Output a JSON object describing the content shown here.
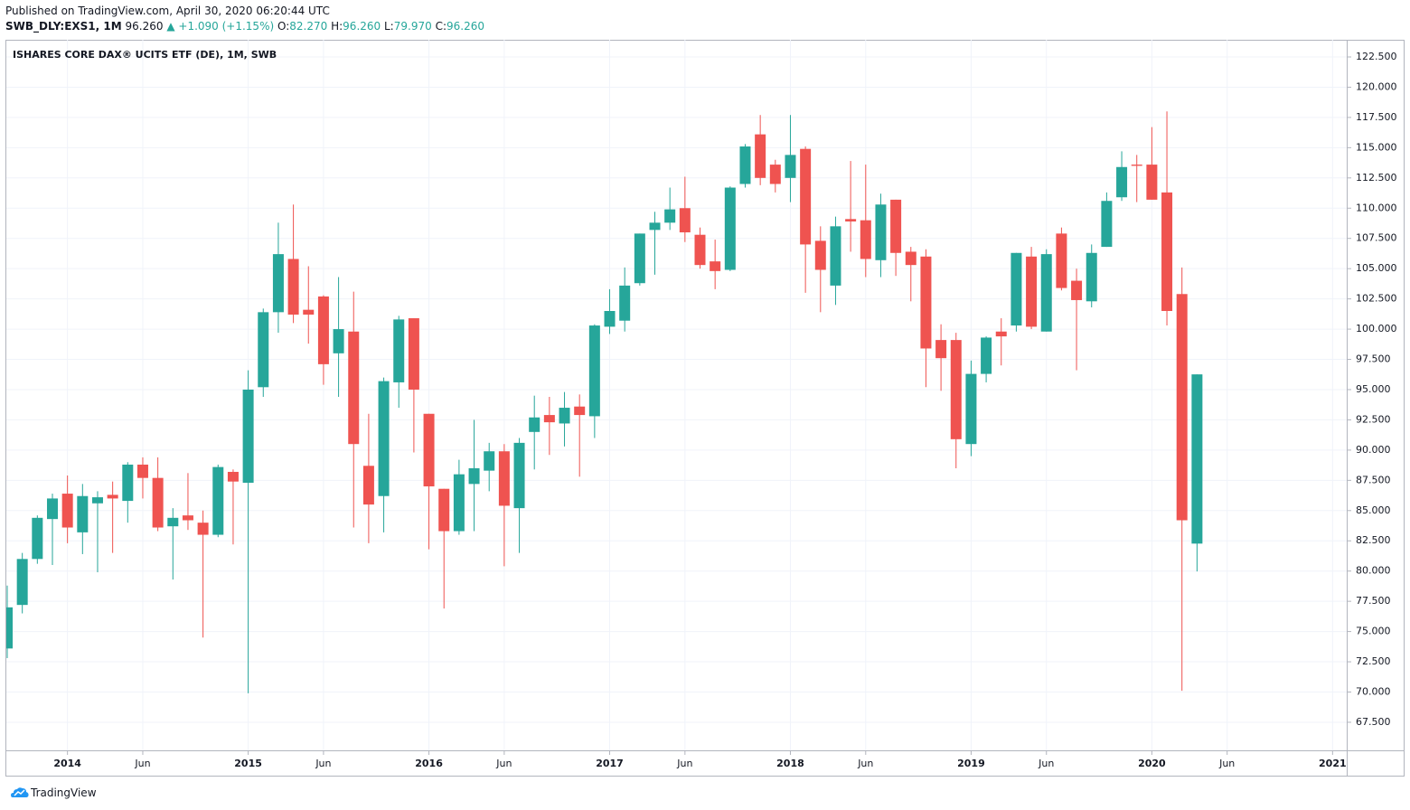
{
  "header": {
    "published": "Published on TradingView.com, April 30, 2020 06:20:44 UTC",
    "symbol": "SWB_DLY:EXS1, 1M",
    "last": "96.260",
    "change": "▲ +1.090 (+1.15%)",
    "ohlc": [
      {
        "label": "O:",
        "value": "82.270"
      },
      {
        "label": "H:",
        "value": "96.260"
      },
      {
        "label": "L:",
        "value": "79.970"
      },
      {
        "label": "C:",
        "value": "96.260"
      }
    ]
  },
  "footer": {
    "brand": "TradingView"
  },
  "chart_data": {
    "type": "candlestick",
    "title": "ISHARES CORE DAX® UCITS ETF (DE), 1M, SWB",
    "up_color": "#26a69a",
    "down_color": "#ef5350",
    "grid": true,
    "x": [
      "2013-09",
      "2013-10",
      "2013-11",
      "2013-12",
      "2014-01",
      "2014-02",
      "2014-03",
      "2014-04",
      "2014-05",
      "2014-06",
      "2014-07",
      "2014-08",
      "2014-09",
      "2014-10",
      "2014-11",
      "2014-12",
      "2015-01",
      "2015-02",
      "2015-03",
      "2015-04",
      "2015-05",
      "2015-06",
      "2015-07",
      "2015-08",
      "2015-09",
      "2015-10",
      "2015-11",
      "2015-12",
      "2016-01",
      "2016-02",
      "2016-03",
      "2016-04",
      "2016-05",
      "2016-06",
      "2016-07",
      "2016-08",
      "2016-09",
      "2016-10",
      "2016-11",
      "2016-12",
      "2017-01",
      "2017-02",
      "2017-03",
      "2017-04",
      "2017-05",
      "2017-06",
      "2017-07",
      "2017-08",
      "2017-09",
      "2017-10",
      "2017-11",
      "2017-12",
      "2018-01",
      "2018-02",
      "2018-03",
      "2018-04",
      "2018-05",
      "2018-06",
      "2018-07",
      "2018-08",
      "2018-09",
      "2018-10",
      "2018-11",
      "2018-12",
      "2019-01",
      "2019-02",
      "2019-03",
      "2019-04",
      "2019-05",
      "2019-06",
      "2019-07",
      "2019-08",
      "2019-09",
      "2019-10",
      "2019-11",
      "2019-12",
      "2020-01",
      "2020-02",
      "2020-03",
      "2020-04"
    ],
    "open": [
      73.6,
      77.2,
      81.0,
      84.3,
      86.4,
      83.2,
      85.6,
      86.3,
      85.8,
      88.8,
      87.7,
      83.7,
      84.6,
      84.0,
      83.0,
      88.2,
      87.3,
      95.2,
      101.4,
      105.8,
      101.6,
      102.7,
      98.0,
      99.8,
      88.7,
      86.2,
      95.6,
      100.9,
      93.0,
      86.8,
      83.3,
      87.2,
      88.3,
      89.9,
      85.2,
      91.5,
      92.9,
      92.2,
      93.6,
      92.8,
      100.2,
      100.7,
      103.8,
      108.2,
      108.8,
      110.0,
      107.8,
      105.6,
      104.9,
      112.0,
      116.1,
      113.6,
      112.5,
      114.9,
      107.3,
      103.6,
      109.1,
      109.0,
      105.7,
      110.7,
      106.4,
      106.0,
      99.1,
      99.1,
      90.5,
      96.3,
      99.8,
      100.3,
      106.0,
      99.8,
      107.9,
      104.0,
      102.3,
      106.8,
      110.9,
      113.6,
      113.6,
      111.3,
      102.9,
      82.27
    ],
    "high": [
      78.8,
      81.5,
      84.6,
      86.4,
      87.9,
      87.2,
      86.6,
      87.4,
      89.0,
      89.4,
      89.4,
      85.2,
      88.1,
      85.0,
      88.8,
      88.4,
      96.6,
      101.7,
      108.8,
      110.3,
      105.2,
      102.8,
      104.3,
      103.1,
      93.0,
      96.0,
      101.1,
      100.9,
      93.0,
      86.8,
      89.2,
      92.5,
      90.6,
      90.5,
      91.0,
      94.5,
      94.4,
      94.8,
      94.6,
      100.4,
      103.3,
      105.1,
      107.9,
      109.7,
      111.7,
      112.6,
      108.4,
      107.4,
      111.8,
      115.3,
      117.7,
      114.0,
      117.7,
      115.1,
      108.5,
      109.3,
      113.9,
      113.6,
      111.2,
      110.7,
      106.8,
      106.6,
      100.4,
      99.7,
      97.4,
      99.4,
      100.9,
      106.3,
      106.8,
      106.6,
      108.4,
      105.0,
      107.0,
      111.3,
      114.7,
      114.4,
      116.7,
      118.0,
      105.1,
      96.26
    ],
    "low": [
      72.8,
      76.5,
      80.6,
      80.5,
      82.3,
      81.4,
      79.9,
      81.5,
      84.0,
      86.0,
      83.3,
      79.3,
      83.4,
      74.5,
      82.8,
      82.2,
      69.9,
      94.4,
      99.7,
      100.5,
      98.8,
      95.4,
      94.4,
      83.6,
      82.3,
      83.2,
      93.5,
      89.8,
      81.8,
      76.9,
      83.0,
      83.3,
      86.6,
      80.4,
      81.5,
      88.4,
      89.6,
      90.3,
      87.8,
      91.0,
      99.6,
      99.8,
      103.6,
      104.5,
      108.2,
      107.2,
      105.0,
      103.3,
      104.8,
      111.7,
      111.9,
      111.3,
      110.5,
      103.0,
      101.4,
      102.0,
      106.4,
      104.3,
      104.3,
      104.4,
      102.3,
      95.2,
      94.9,
      88.5,
      89.5,
      95.6,
      97.0,
      99.8,
      100.0,
      99.8,
      103.2,
      96.6,
      101.8,
      106.8,
      110.6,
      110.5,
      110.7,
      100.3,
      70.1,
      79.97
    ],
    "close": [
      77.0,
      81.0,
      84.4,
      86.0,
      83.6,
      86.2,
      86.1,
      86.0,
      88.8,
      87.7,
      83.6,
      84.4,
      84.2,
      83.0,
      88.6,
      87.4,
      95.0,
      101.4,
      106.2,
      101.2,
      101.2,
      97.1,
      100.0,
      90.5,
      85.5,
      95.7,
      100.8,
      95.0,
      87.0,
      83.3,
      88.0,
      88.5,
      89.9,
      85.4,
      90.6,
      92.7,
      92.3,
      93.5,
      92.9,
      100.3,
      101.5,
      103.6,
      107.9,
      108.8,
      109.9,
      108.0,
      105.3,
      104.8,
      111.7,
      115.1,
      112.5,
      112.0,
      114.4,
      107.0,
      104.9,
      108.5,
      108.9,
      105.8,
      110.3,
      106.3,
      105.3,
      98.4,
      97.6,
      90.9,
      96.3,
      99.3,
      99.4,
      106.3,
      100.2,
      106.2,
      103.4,
      102.4,
      106.3,
      110.6,
      113.4,
      113.5,
      110.7,
      101.5,
      84.2,
      96.26
    ],
    "xlim": [
      "2013-09",
      "2021-02"
    ],
    "xticks": [
      {
        "value": "2014-01",
        "label": "2014"
      },
      {
        "value": "2014-06",
        "label": "Jun"
      },
      {
        "value": "2015-01",
        "label": "2015"
      },
      {
        "value": "2015-06",
        "label": "Jun"
      },
      {
        "value": "2016-01",
        "label": "2016"
      },
      {
        "value": "2016-06",
        "label": "Jun"
      },
      {
        "value": "2017-01",
        "label": "2017"
      },
      {
        "value": "2017-06",
        "label": "Jun"
      },
      {
        "value": "2018-01",
        "label": "2018"
      },
      {
        "value": "2018-06",
        "label": "Jun"
      },
      {
        "value": "2019-01",
        "label": "2019"
      },
      {
        "value": "2019-06",
        "label": "Jun"
      },
      {
        "value": "2020-01",
        "label": "2020"
      },
      {
        "value": "2020-06",
        "label": "Jun"
      },
      {
        "value": "2021-01",
        "label": "2021"
      }
    ],
    "ylim": [
      65.18,
      123.92
    ],
    "yticks": [
      {
        "value": 67.5,
        "label": "67.500"
      },
      {
        "value": 70,
        "label": "70.000"
      },
      {
        "value": 72.5,
        "label": "72.500"
      },
      {
        "value": 75,
        "label": "75.000"
      },
      {
        "value": 77.5,
        "label": "77.500"
      },
      {
        "value": 80,
        "label": "80.000"
      },
      {
        "value": 82.5,
        "label": "82.500"
      },
      {
        "value": 85,
        "label": "85.000"
      },
      {
        "value": 87.5,
        "label": "87.500"
      },
      {
        "value": 90,
        "label": "90.000"
      },
      {
        "value": 92.5,
        "label": "92.500"
      },
      {
        "value": 95,
        "label": "95.000"
      },
      {
        "value": 97.5,
        "label": "97.500"
      },
      {
        "value": 100,
        "label": "100.000"
      },
      {
        "value": 102.5,
        "label": "102.500"
      },
      {
        "value": 105,
        "label": "105.000"
      },
      {
        "value": 107.5,
        "label": "107.500"
      },
      {
        "value": 110,
        "label": "110.000"
      },
      {
        "value": 112.5,
        "label": "112.500"
      },
      {
        "value": 115,
        "label": "115.000"
      },
      {
        "value": 117.5,
        "label": "117.500"
      },
      {
        "value": 120,
        "label": "120.000"
      },
      {
        "value": 122.5,
        "label": "122.500"
      }
    ]
  }
}
